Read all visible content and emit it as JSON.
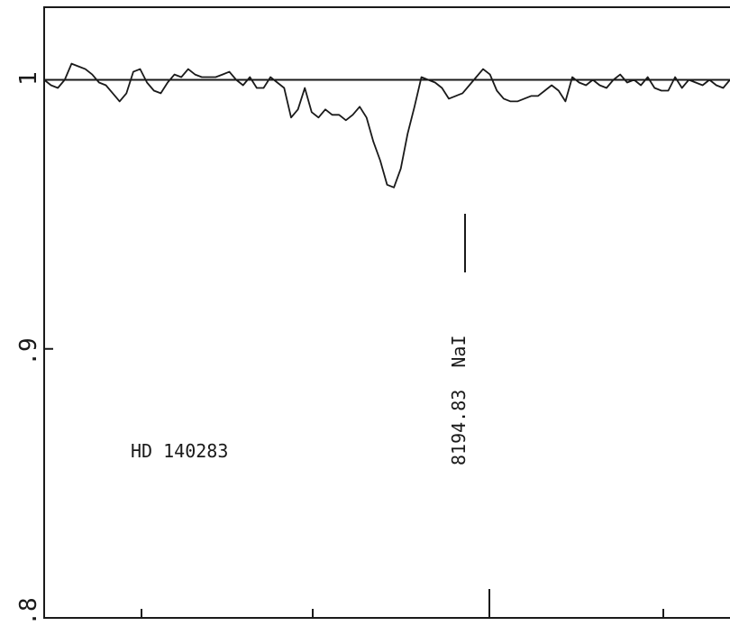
{
  "chart_data": {
    "type": "line",
    "title": "",
    "xlabel": "",
    "ylabel": "",
    "ylim": [
      0.8,
      1.027
    ],
    "yticks": [
      {
        "value": 1.0,
        "label": "1"
      },
      {
        "value": 0.9,
        "label": ".9"
      },
      {
        "value": 0.8,
        "label": ".8"
      }
    ],
    "x_tick_count": 4,
    "grid": false,
    "legend": "none",
    "reference_line": 1.0,
    "series": [
      {
        "x": [
          0,
          1,
          2,
          3,
          4,
          5,
          6,
          7,
          8,
          9,
          10,
          11,
          12,
          13,
          14,
          15,
          16,
          17,
          18,
          19,
          20,
          21,
          22,
          23,
          24,
          25,
          26,
          27,
          28,
          29,
          30,
          31,
          32,
          33,
          34,
          35,
          36,
          37,
          38,
          39,
          40,
          41,
          42,
          43,
          44,
          45,
          46,
          47,
          48,
          49,
          50,
          51,
          52,
          53,
          54,
          55,
          56,
          57,
          58,
          59,
          60,
          61,
          62,
          63,
          64,
          65,
          66,
          67,
          68,
          69,
          70,
          71,
          72,
          73,
          74,
          75,
          76,
          77,
          78,
          79,
          80,
          81,
          82,
          83,
          84,
          85,
          86,
          87,
          88,
          89,
          90,
          91,
          92,
          93,
          94,
          95,
          96,
          97,
          98,
          99,
          100
        ],
        "y": [
          1.0,
          0.998,
          0.997,
          1.0,
          1.006,
          1.005,
          1.004,
          1.002,
          0.999,
          0.998,
          0.995,
          0.992,
          0.995,
          1.003,
          1.004,
          0.999,
          0.996,
          0.995,
          0.999,
          1.002,
          1.001,
          1.004,
          1.002,
          1.001,
          1.001,
          1.001,
          1.002,
          1.003,
          1.0,
          0.998,
          1.001,
          0.997,
          0.997,
          1.001,
          0.999,
          0.997,
          0.986,
          0.989,
          0.997,
          0.988,
          0.986,
          0.989,
          0.987,
          0.987,
          0.985,
          0.987,
          0.99,
          0.986,
          0.977,
          0.97,
          0.961,
          0.96,
          0.967,
          0.98,
          0.99,
          1.001,
          1.0,
          0.999,
          0.997,
          0.993,
          0.994,
          0.995,
          0.998,
          1.001,
          1.004,
          1.002,
          0.996,
          0.993,
          0.992,
          0.992,
          0.993,
          0.994,
          0.994,
          0.996,
          0.998,
          0.996,
          0.992,
          1.001,
          0.999,
          0.998,
          1.0,
          0.998,
          0.997,
          1.0,
          1.002,
          0.999,
          1.0,
          0.998,
          1.001,
          0.997,
          0.996,
          0.996,
          1.001,
          0.997,
          1.0,
          0.999,
          0.998,
          1.0,
          0.998,
          0.997,
          1.0
        ]
      }
    ],
    "annotations": {
      "star": "HD 140283",
      "line_label": "8194.83  NaI"
    }
  }
}
